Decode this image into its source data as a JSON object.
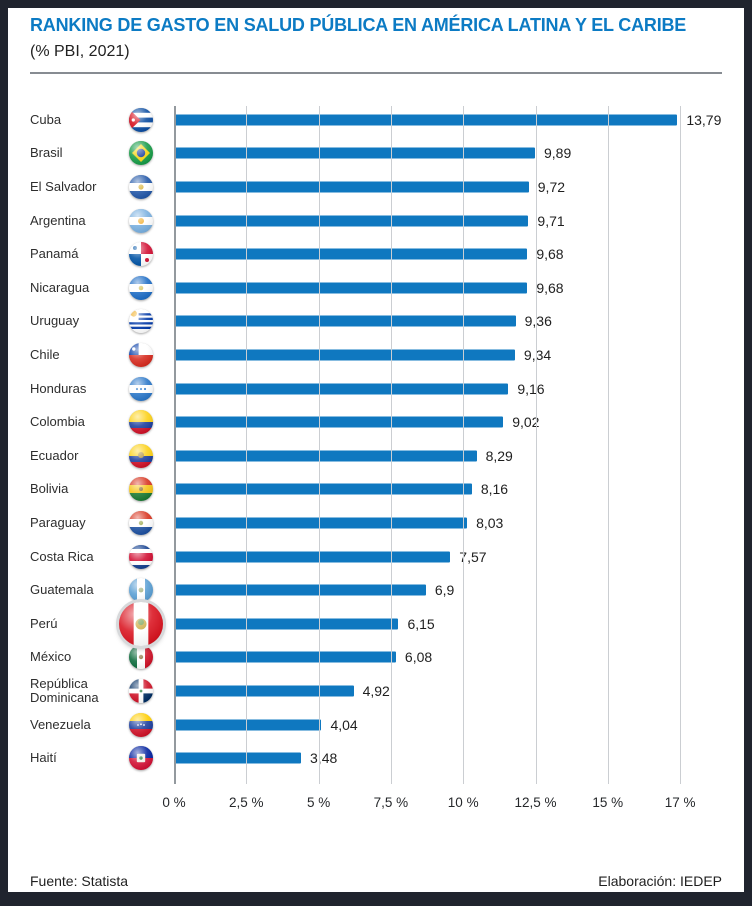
{
  "header": {
    "title": "RANKING DE GASTO EN SALUD PÚBLICA EN AMÉRICA LATINA Y EL CARIBE",
    "subtitle": "(% PBI, 2021)"
  },
  "footer": {
    "source": "Fuente: Statista",
    "elaboration": "Elaboración: IEDEP"
  },
  "colors": {
    "title_blue": "#0c7bc4",
    "bar_blue": "#0f78c0",
    "frame_dark": "#20242e"
  },
  "chart_data": {
    "type": "bar",
    "orientation": "horizontal",
    "title": "RANKING DE GASTO EN SALUD PÚBLICA EN AMÉRICA LATINA Y EL CARIBE",
    "subtitle": "(% PBI, 2021)",
    "categories": [
      "Cuba",
      "Brasil",
      "El Salvador",
      "Argentina",
      "Panamá",
      "Nicaragua",
      "Uruguay",
      "Chile",
      "Honduras",
      "Colombia",
      "Ecuador",
      "Bolivia",
      "Paraguay",
      "Costa Rica",
      "Guatemala",
      "Perú",
      "México",
      "República Dominicana",
      "Venezuela",
      "Haití"
    ],
    "values": [
      13.79,
      9.89,
      9.72,
      9.71,
      9.68,
      9.68,
      9.36,
      9.34,
      9.16,
      9.02,
      8.29,
      8.16,
      8.03,
      7.57,
      6.9,
      6.15,
      6.08,
      4.92,
      4.04,
      3.48
    ],
    "value_labels": [
      "13,79",
      "9,89",
      "9,72",
      "9,71",
      "9,68",
      "9,68",
      "9,36",
      "9,34",
      "9,16",
      "9,02",
      "8,29",
      "8,16",
      "8,03",
      "7,57",
      "6,9",
      "6,15",
      "6,08",
      "4,92",
      "4,04",
      "3,48"
    ],
    "flags": [
      "cuba",
      "brasil",
      "elsalvador",
      "argentina",
      "panama",
      "nicaragua",
      "uruguay",
      "chile",
      "honduras",
      "colombia",
      "ecuador",
      "bolivia",
      "paraguay",
      "costarica",
      "guatemala",
      "peru",
      "mexico",
      "dominicana",
      "venezuela",
      "haiti"
    ],
    "highlighted_category": "Perú",
    "x_tick_labels": [
      "0 %",
      "2,5 %",
      "5 %",
      "7,5 %",
      "10 %",
      "12,5 %",
      "15 %",
      "17 %"
    ],
    "x_tick_values": [
      0,
      2.5,
      5,
      7.5,
      10,
      12.5,
      15,
      17
    ],
    "xlim": [
      0,
      17
    ],
    "grid": true,
    "legend": false,
    "bar_color": "#0f78c0"
  }
}
